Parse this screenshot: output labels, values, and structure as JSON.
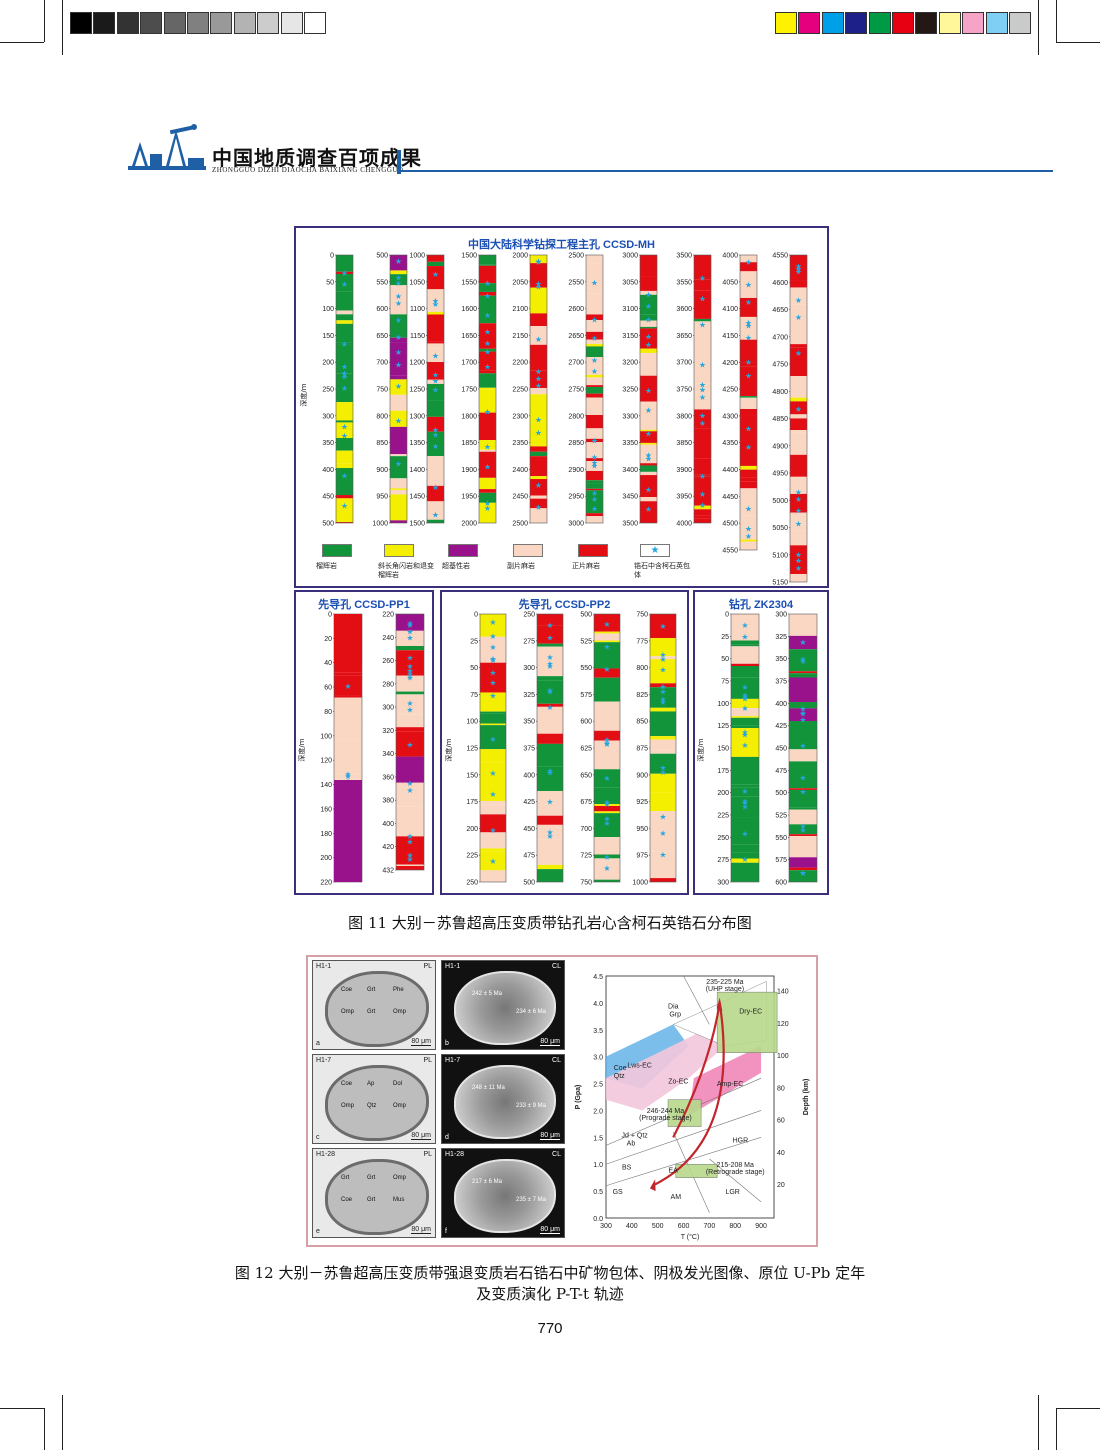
{
  "header": {
    "title": "中国地质调查百项成果",
    "subtitle": "ZHONGGUO DIZHI DIAOCHA BAIXIANG CHENGGUO"
  },
  "colors": {
    "eclogite": "#12943a",
    "amphibolite": "#f4ee00",
    "ultramafic": "#9a118c",
    "paragneiss": "#f9d7c3",
    "orthogneiss": "#e30d14",
    "star": "#26a6e0",
    "panel_border": "#3a2f7a",
    "title_blue": "#1b4fb3",
    "header_blue": "#1f5fa6"
  },
  "color_bar_left": [
    "#000000",
    "#1a1a1a",
    "#333333",
    "#4d4d4d",
    "#666666",
    "#808080",
    "#999999",
    "#b3b3b3",
    "#cccccc",
    "#e6e6e6",
    "#ffffff"
  ],
  "color_bar_right": [
    "#fff200",
    "#e5007e",
    "#00a0e9",
    "#1d2088",
    "#009944",
    "#e60012",
    "#231815",
    "#fff799",
    "#f5a3c7",
    "#7fcef4",
    "#c9caca"
  ],
  "figure11": {
    "main_title": "中国大陆科学钻探工程主孔 CCSD-MH",
    "pp1_title": "先导孔 CCSD-PP1",
    "pp2_title": "先导孔 CCSD-PP2",
    "zk_title": "钻孔 ZK2304",
    "ylabel": "深度/m",
    "legend": [
      "榴辉岩",
      "斜长角闪岩和退变榴辉岩",
      "超基性岩",
      "副片麻岩",
      "正片麻岩",
      "锆石中含柯石英包体"
    ],
    "caption": "图 11  大别－苏鲁超高压变质带钻孔岩心含柯石英锆石分布图"
  },
  "mh_columns": [
    {
      "ticks": [
        "0",
        "50",
        "100",
        "150",
        "200",
        "250",
        "300",
        "350",
        "400",
        "450",
        "500"
      ]
    },
    {
      "ticks": [
        "500",
        "550",
        "600",
        "650",
        "700",
        "750",
        "800",
        "850",
        "900",
        "950",
        "1000"
      ]
    },
    {
      "ticks": [
        "1000",
        "1050",
        "1100",
        "1150",
        "1200",
        "1250",
        "1300",
        "1350",
        "1400",
        "1450",
        "1500"
      ]
    },
    {
      "ticks": [
        "1500",
        "1550",
        "1600",
        "1650",
        "1700",
        "1750",
        "1800",
        "1850",
        "1900",
        "1950",
        "2000"
      ]
    },
    {
      "ticks": [
        "2000",
        "2050",
        "2100",
        "2150",
        "2200",
        "2250",
        "2300",
        "2350",
        "2400",
        "2450",
        "2500"
      ]
    },
    {
      "ticks": [
        "2500",
        "2550",
        "2600",
        "2650",
        "2700",
        "2750",
        "2800",
        "2850",
        "2900",
        "2950",
        "3000"
      ]
    },
    {
      "ticks": [
        "3000",
        "3050",
        "3100",
        "3150",
        "3200",
        "3250",
        "3300",
        "3350",
        "3400",
        "3450",
        "3500"
      ]
    },
    {
      "ticks": [
        "3500",
        "3550",
        "3600",
        "3650",
        "3700",
        "3750",
        "3800",
        "3850",
        "3900",
        "3950",
        "4000"
      ]
    },
    {
      "ticks": [
        "4000",
        "4050",
        "4100",
        "4150",
        "4200",
        "4250",
        "4300",
        "4350",
        "4400",
        "4450",
        "4500",
        "4550"
      ]
    },
    {
      "ticks": [
        "4550",
        "4600",
        "4650",
        "4700",
        "4750",
        "4800",
        "4850",
        "4900",
        "4950",
        "5000",
        "5050",
        "5100",
        "5150"
      ]
    }
  ],
  "pp1_columns": [
    {
      "ticks": [
        "0",
        "20",
        "40",
        "60",
        "80",
        "100",
        "120",
        "140",
        "160",
        "180",
        "200",
        "220"
      ]
    },
    {
      "ticks": [
        "220",
        "240",
        "260",
        "280",
        "300",
        "320",
        "340",
        "360",
        "380",
        "400",
        "420",
        "432"
      ]
    }
  ],
  "pp2_columns": [
    {
      "ticks": [
        "0",
        "25",
        "50",
        "75",
        "100",
        "125",
        "150",
        "175",
        "200",
        "225",
        "250"
      ]
    },
    {
      "ticks": [
        "250",
        "275",
        "300",
        "325",
        "350",
        "375",
        "400",
        "425",
        "450",
        "475",
        "500"
      ]
    },
    {
      "ticks": [
        "500",
        "525",
        "550",
        "575",
        "600",
        "625",
        "650",
        "675",
        "700",
        "725",
        "750"
      ]
    },
    {
      "ticks": [
        "750",
        "775",
        "800",
        "825",
        "850",
        "875",
        "900",
        "925",
        "950",
        "975",
        "1000"
      ]
    }
  ],
  "zk_columns": [
    {
      "ticks": [
        "0",
        "25",
        "50",
        "75",
        "100",
        "125",
        "150",
        "175",
        "200",
        "225",
        "250",
        "275",
        "300"
      ]
    },
    {
      "ticks": [
        "300",
        "325",
        "350",
        "375",
        "400",
        "425",
        "450",
        "475",
        "500",
        "525",
        "550",
        "575",
        "600"
      ]
    }
  ],
  "figure12": {
    "sem_images": [
      {
        "id": "H1-1",
        "mode": "PL",
        "panel": "a",
        "scale": "80 μm",
        "labels": [
          "Coe",
          "Grt",
          "Phe",
          "Omp",
          "Grt",
          "Omp"
        ]
      },
      {
        "id": "H1-1",
        "mode": "CL",
        "panel": "b",
        "scale": "80 μm",
        "labels": [
          "242 ± 5 Ma",
          "234 ± 6 Ma"
        ]
      },
      {
        "id": "H1-7",
        "mode": "PL",
        "panel": "c",
        "scale": "80 μm",
        "labels": [
          "Coe",
          "Ap",
          "Dol",
          "Omp",
          "Qtz",
          "Omp"
        ]
      },
      {
        "id": "H1-7",
        "mode": "CL",
        "panel": "d",
        "scale": "80 μm",
        "labels": [
          "248 ± 11 Ma",
          "233 ± 9 Ma"
        ]
      },
      {
        "id": "H1-28",
        "mode": "PL",
        "panel": "e",
        "scale": "80 μm",
        "labels": [
          "Grt",
          "Grt",
          "Omp",
          "Coe",
          "Grt",
          "Mus"
        ]
      },
      {
        "id": "H1-28",
        "mode": "CL",
        "panel": "f",
        "scale": "80 μm",
        "labels": [
          "217 ± 6 Ma",
          "235 ± 7 Ma"
        ]
      }
    ],
    "pt": {
      "xlabel": "T (°C)",
      "ylabel": "P (Gpa)",
      "y2label": "Depth (km)",
      "xticks": [
        "300",
        "400",
        "500",
        "600",
        "700",
        "800",
        "900"
      ],
      "yticks": [
        "0.0",
        "0.5",
        "1.0",
        "1.5",
        "2.0",
        "2.5",
        "3.0",
        "3.5",
        "4.0",
        "4.5"
      ],
      "y2ticks": [
        "20",
        "40",
        "60",
        "80",
        "100",
        "120",
        "140"
      ],
      "fields": [
        "Lws-EC",
        "Zo-EC",
        "Amp-EC",
        "Dry-EC",
        "HGR",
        "BS",
        "EA",
        "GS",
        "AM",
        "LGR"
      ],
      "reactions": [
        "Dia",
        "Grp",
        "Coe",
        "Qtz",
        "Jd + Qtz",
        "Ab"
      ],
      "stages": [
        {
          "age": "235-225 Ma",
          "name": "(UHP stage)"
        },
        {
          "age": "246-244 Ma",
          "name": "(Prograde stage)"
        },
        {
          "age": "215-208 Ma",
          "name": "(Retrograde stage)"
        }
      ]
    },
    "caption_line1": "图 12  大别－苏鲁超高压变质带强退变质岩石锆石中矿物包体、阴极发光图像、原位 U-Pb 定年",
    "caption_line2": "及变质演化 P-T-t 轨迹"
  },
  "page_number": "770"
}
